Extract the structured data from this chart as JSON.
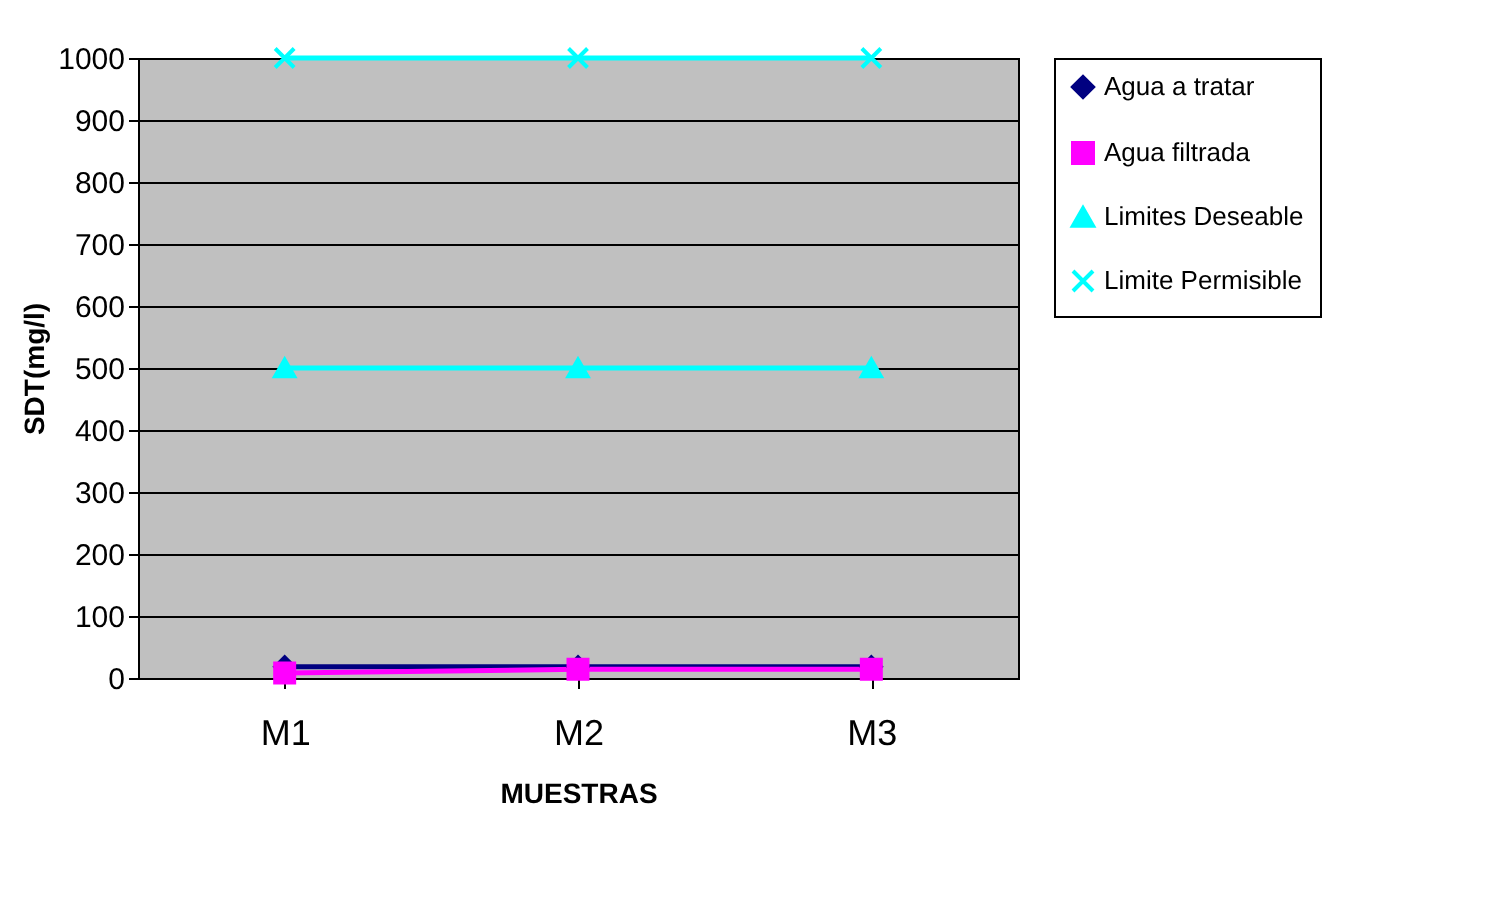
{
  "chart_data": {
    "type": "line",
    "xlabel": "MUESTRAS",
    "ylabel": "SDT(mg/l)",
    "categories": [
      "M1",
      "M2",
      "M3"
    ],
    "series": [
      {
        "name": "Agua a tratar",
        "color": "#000080",
        "marker": "diamond",
        "values": [
          18,
          18,
          18
        ]
      },
      {
        "name": "Agua filtrada",
        "color": "#ff00ff",
        "marker": "square",
        "values": [
          8,
          14,
          14
        ]
      },
      {
        "name": "Limites Deseable",
        "color": "#00ffff",
        "marker": "triangle",
        "values": [
          500,
          500,
          500
        ]
      },
      {
        "name": "Limite Permisible",
        "color": "#00ffff",
        "marker": "cross",
        "values": [
          1000,
          1000,
          1000
        ]
      }
    ],
    "ylim": [
      0,
      1000
    ],
    "yticks": [
      0,
      100,
      200,
      300,
      400,
      500,
      600,
      700,
      800,
      900,
      1000
    ],
    "grid": "y",
    "legend": "right"
  }
}
